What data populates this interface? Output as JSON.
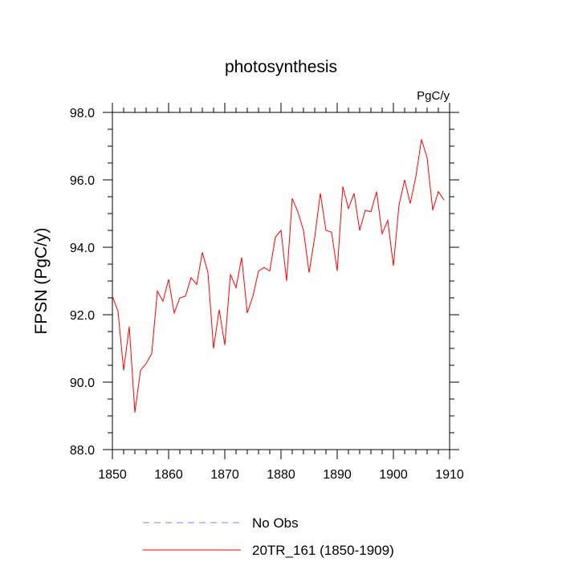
{
  "chart_data": {
    "type": "line",
    "title": "photosynthesis",
    "units_label": "PgC/y",
    "ylabel": "FPSN  (PgC/y)",
    "xlabel": "",
    "xlim": [
      1850,
      1910
    ],
    "ylim": [
      88,
      98
    ],
    "x_ticks": [
      1850,
      1860,
      1870,
      1880,
      1890,
      1900,
      1910
    ],
    "x_tick_labels": [
      "1850",
      "1860",
      "1870",
      "1880",
      "1890",
      "1900",
      "1910"
    ],
    "y_ticks": [
      88,
      90,
      92,
      94,
      96,
      98
    ],
    "y_tick_labels": [
      "88.0",
      "90.0",
      "92.0",
      "94.0",
      "96.0",
      "98.0"
    ],
    "series": [
      {
        "name": "20TR_161 (1850-1909)",
        "color": "#ff0000",
        "style": "solid",
        "x": [
          1850,
          1851,
          1852,
          1853,
          1854,
          1855,
          1856,
          1857,
          1858,
          1859,
          1860,
          1861,
          1862,
          1863,
          1864,
          1865,
          1866,
          1867,
          1868,
          1869,
          1870,
          1871,
          1872,
          1873,
          1874,
          1875,
          1876,
          1877,
          1878,
          1879,
          1880,
          1881,
          1882,
          1883,
          1884,
          1885,
          1886,
          1887,
          1888,
          1889,
          1890,
          1891,
          1892,
          1893,
          1894,
          1895,
          1896,
          1897,
          1898,
          1899,
          1900,
          1901,
          1902,
          1903,
          1904,
          1905,
          1906,
          1907,
          1908,
          1909
        ],
        "values": [
          92.55,
          92.1,
          90.35,
          91.65,
          89.1,
          90.35,
          90.55,
          90.85,
          92.7,
          92.4,
          93.05,
          92.05,
          92.5,
          92.55,
          93.1,
          92.9,
          93.85,
          93.25,
          91.0,
          92.15,
          91.1,
          93.2,
          92.8,
          93.7,
          92.05,
          92.55,
          93.3,
          93.4,
          93.3,
          94.3,
          94.5,
          93.0,
          95.45,
          95.05,
          94.5,
          93.25,
          94.3,
          95.6,
          94.5,
          94.45,
          93.3,
          95.8,
          95.15,
          95.6,
          94.5,
          95.1,
          95.05,
          95.65,
          94.4,
          94.8,
          93.45,
          95.25,
          96.0,
          95.3,
          96.1,
          97.2,
          96.65,
          95.1,
          95.65,
          95.4
        ]
      },
      {
        "name": "No Obs",
        "color": "#8080ff",
        "style": "dashed",
        "x": [],
        "values": []
      }
    ],
    "legend_position": "bottom"
  }
}
